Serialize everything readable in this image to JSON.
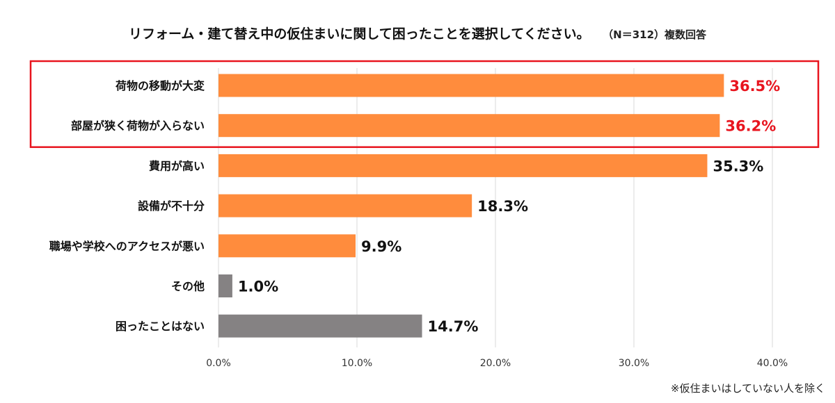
{
  "header": {
    "title": "リフォーム・建て替え中の仮住まいに関して困ったことを選択してください。",
    "sample_note": "（N＝312）複数回答"
  },
  "footnote": "※仮住まいはしていない人を除く",
  "colors": {
    "orange": "#FF8C3D",
    "gray": "#858283",
    "highlight_red": "#E8141E",
    "label_dark": "#111111",
    "grid": "#D9D9D9"
  },
  "chart_data": {
    "type": "bar",
    "orientation": "horizontal",
    "categories": [
      "荷物の移動が大変",
      "部屋が狭く荷物が入らない",
      "費用が高い",
      "設備が不十分",
      "職場や学校へのアクセスが悪い",
      "その他",
      "困ったことはない"
    ],
    "values": [
      36.5,
      36.2,
      35.3,
      18.3,
      9.9,
      1.0,
      14.7
    ],
    "value_labels": [
      "36.5%",
      "36.2%",
      "35.3%",
      "18.3%",
      "9.9%",
      "1.0%",
      "14.7%"
    ],
    "bar_colors": [
      "orange",
      "orange",
      "orange",
      "orange",
      "orange",
      "gray",
      "gray"
    ],
    "highlighted_categories": [
      0,
      1
    ],
    "xlim": [
      0,
      40
    ],
    "xticks": [
      0,
      10,
      20,
      30,
      40
    ],
    "xtick_labels": [
      "0.0%",
      "10.0%",
      "20.0%",
      "30.0%",
      "40.0%"
    ],
    "grid": "vertical",
    "xlabel": "",
    "ylabel": ""
  }
}
